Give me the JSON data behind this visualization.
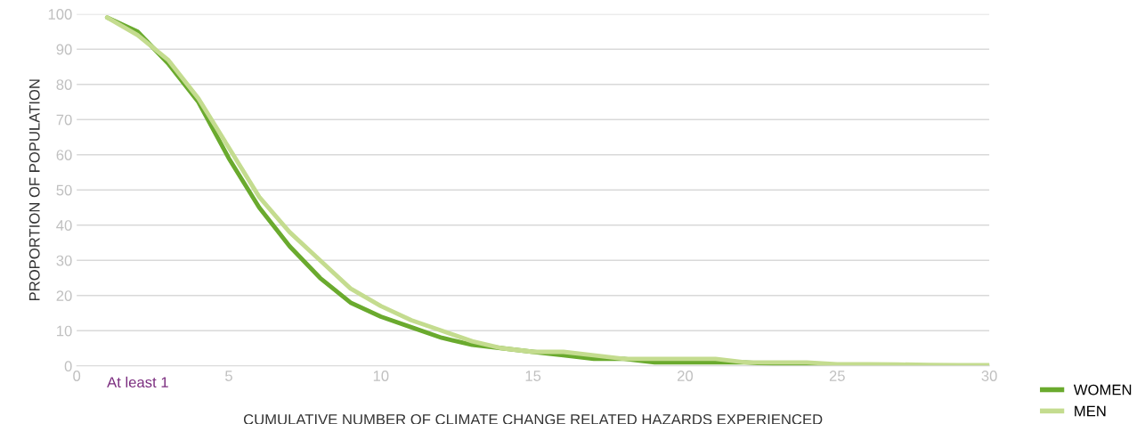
{
  "chart_data": {
    "type": "line",
    "xlabel": "CUMULATIVE NUMBER OF CLIMATE CHANGE RELATED HAZARDS EXPERIENCED",
    "ylabel": "PROPORTION OF POPULATION",
    "x": [
      1,
      2,
      3,
      4,
      5,
      6,
      7,
      8,
      9,
      10,
      11,
      12,
      13,
      14,
      15,
      16,
      17,
      18,
      19,
      20,
      21,
      22,
      23,
      24,
      25,
      26,
      27,
      28,
      29,
      30
    ],
    "series": [
      {
        "name": "WOMEN",
        "color": "#6aaa2e",
        "values": [
          99,
          95,
          86,
          75,
          59,
          45,
          34,
          25,
          18,
          14,
          11,
          8,
          6,
          5,
          4,
          3,
          2,
          2,
          1,
          1,
          1,
          1,
          0.5,
          0.5,
          0.3,
          0.2,
          0.2,
          0.1,
          0.1,
          0
        ]
      },
      {
        "name": "MEN",
        "color": "#c4dc8f",
        "values": [
          99,
          94,
          87,
          76,
          62,
          48,
          38,
          30,
          22,
          17,
          13,
          10,
          7,
          5,
          4,
          4,
          3,
          2,
          2,
          2,
          2,
          1,
          1,
          1,
          0.5,
          0.5,
          0.4,
          0.3,
          0.2,
          0.2
        ]
      }
    ],
    "xlim": [
      0,
      30
    ],
    "xticks": [
      0,
      5,
      10,
      15,
      20,
      25,
      30
    ],
    "ylim": [
      0,
      100
    ],
    "yticks": [
      0,
      10,
      20,
      30,
      40,
      50,
      60,
      70,
      80,
      90,
      100
    ],
    "grid": "y",
    "legend": "bottom right",
    "marker": "none",
    "line_style": "solid",
    "annotations": [
      "At least 1"
    ]
  }
}
